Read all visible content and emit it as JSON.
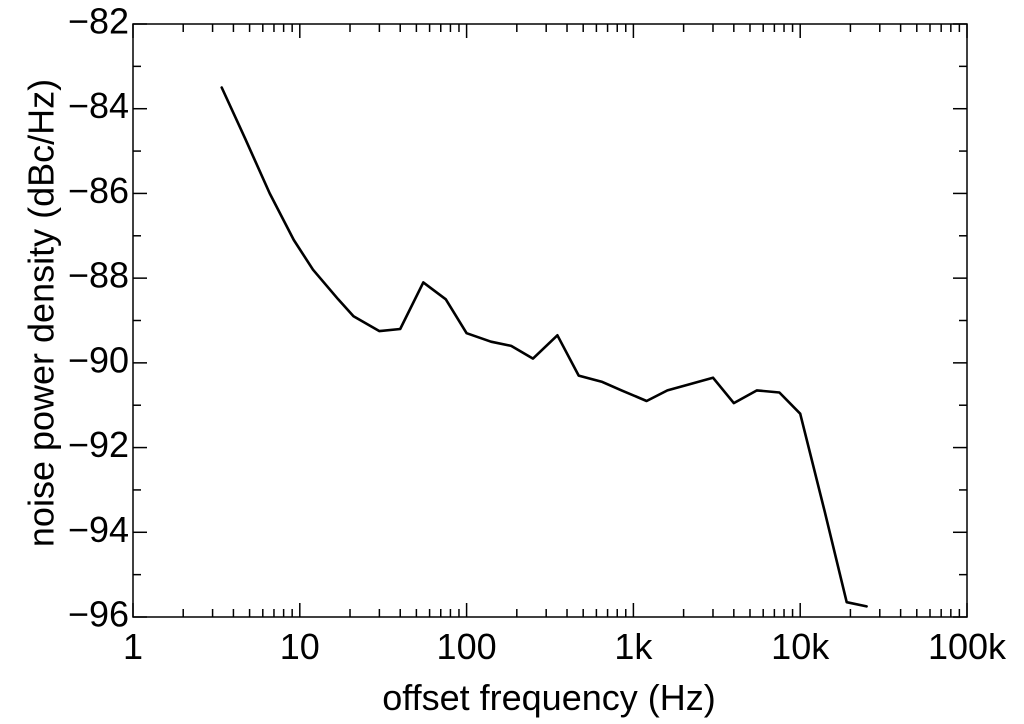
{
  "chart_data": {
    "type": "line",
    "title": "",
    "xlabel": "offset frequency (Hz)",
    "ylabel": "noise power density (dBc/Hz)",
    "xscale": "log",
    "xlim": [
      1,
      100000
    ],
    "ylim": [
      -96,
      -82
    ],
    "x_ticks": [
      {
        "value": 1,
        "label": "1"
      },
      {
        "value": 10,
        "label": "10"
      },
      {
        "value": 100,
        "label": "100"
      },
      {
        "value": 1000,
        "label": "1k"
      },
      {
        "value": 10000,
        "label": "10k"
      },
      {
        "value": 100000,
        "label": "100k"
      }
    ],
    "y_ticks": [
      {
        "value": -82,
        "label": "−82"
      },
      {
        "value": -84,
        "label": "−84"
      },
      {
        "value": -86,
        "label": "−86"
      },
      {
        "value": -88,
        "label": "−88"
      },
      {
        "value": -90,
        "label": "−90"
      },
      {
        "value": -92,
        "label": "−92"
      },
      {
        "value": -94,
        "label": "−94"
      },
      {
        "value": -96,
        "label": "−96"
      }
    ],
    "grid": false,
    "legend": "none",
    "line_color": "#000000",
    "series": [
      {
        "x": [
          3.4,
          4.7,
          6.6,
          9.2,
          12,
          17,
          21,
          30,
          40,
          55,
          75,
          100,
          140,
          185,
          250,
          350,
          470,
          650,
          850,
          1200,
          1600,
          2200,
          3000,
          4000,
          5500,
          7500,
          10000,
          14000,
          19000,
          25000
        ],
        "y": [
          -83.5,
          -84.7,
          -86.0,
          -87.1,
          -87.8,
          -88.5,
          -88.9,
          -89.25,
          -89.2,
          -88.1,
          -88.5,
          -89.3,
          -89.5,
          -89.6,
          -89.9,
          -89.35,
          -90.3,
          -90.45,
          -90.65,
          -90.9,
          -90.65,
          -90.5,
          -90.35,
          -90.95,
          -90.65,
          -90.7,
          -91.2,
          -93.5,
          -95.65,
          -95.75
        ]
      }
    ]
  }
}
